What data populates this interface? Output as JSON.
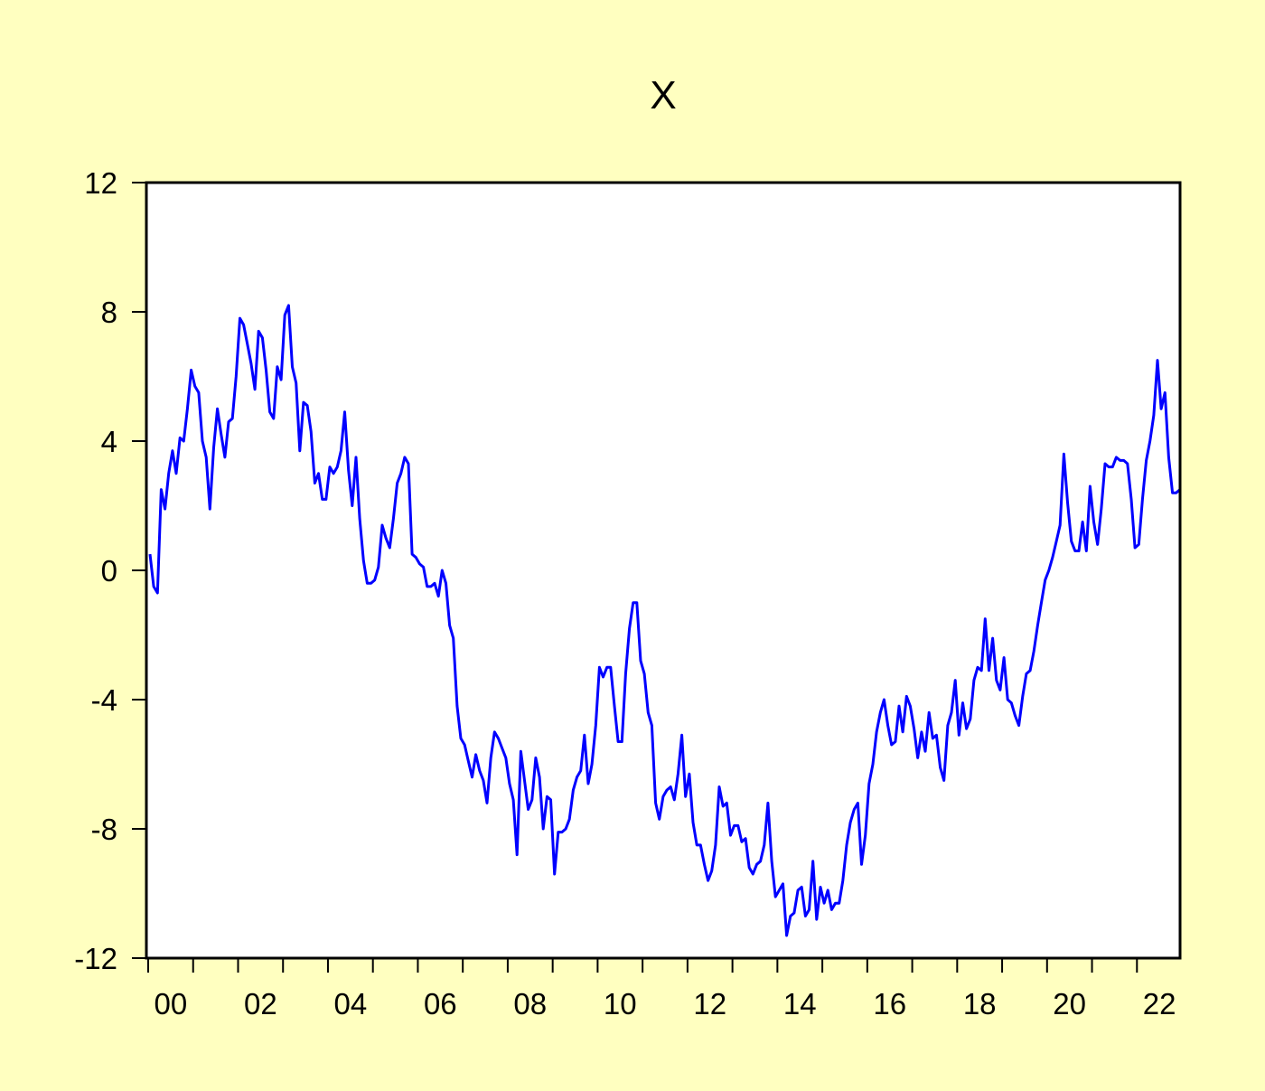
{
  "chart_data": {
    "type": "line",
    "title": "X",
    "xlabel": "",
    "ylabel": "",
    "x_range": [
      "2000-01",
      "2022-12"
    ],
    "ylim": [
      -12,
      12
    ],
    "y_ticks": [
      12,
      8,
      4,
      0,
      -4,
      -8,
      -12
    ],
    "x_tick_labels": [
      "00",
      "02",
      "04",
      "06",
      "08",
      "10",
      "12",
      "14",
      "16",
      "18",
      "20",
      "22"
    ],
    "legend": "none",
    "grid": false,
    "background_color": "#FFFFC0",
    "plot_background_color": "#FFFFFF",
    "series": [
      {
        "color": "#0000FF",
        "points": [
          [
            "2000-01",
            0.5
          ],
          [
            "2000-02",
            -0.5
          ],
          [
            "2000-03",
            -0.7
          ],
          [
            "2000-04",
            2.5
          ],
          [
            "2000-05",
            1.9
          ],
          [
            "2000-06",
            3.0
          ],
          [
            "2000-07",
            3.7
          ],
          [
            "2000-08",
            3.0
          ],
          [
            "2000-09",
            4.1
          ],
          [
            "2000-10",
            4.0
          ],
          [
            "2000-11",
            5.0
          ],
          [
            "2000-12",
            6.2
          ],
          [
            "2001-01",
            5.7
          ],
          [
            "2001-02",
            5.5
          ],
          [
            "2001-03",
            4.0
          ],
          [
            "2001-04",
            3.5
          ],
          [
            "2001-05",
            1.9
          ],
          [
            "2001-06",
            3.8
          ],
          [
            "2001-07",
            5.0
          ],
          [
            "2001-08",
            4.2
          ],
          [
            "2001-09",
            3.5
          ],
          [
            "2001-10",
            4.6
          ],
          [
            "2001-11",
            4.7
          ],
          [
            "2001-12",
            6.0
          ],
          [
            "2002-01",
            7.8
          ],
          [
            "2002-02",
            7.6
          ],
          [
            "2002-03",
            7.0
          ],
          [
            "2002-04",
            6.4
          ],
          [
            "2002-05",
            5.6
          ],
          [
            "2002-06",
            7.4
          ],
          [
            "2002-07",
            7.2
          ],
          [
            "2002-08",
            6.2
          ],
          [
            "2002-09",
            4.9
          ],
          [
            "2002-10",
            4.7
          ],
          [
            "2002-11",
            6.3
          ],
          [
            "2002-12",
            5.9
          ],
          [
            "2003-01",
            7.9
          ],
          [
            "2003-02",
            8.2
          ],
          [
            "2003-03",
            6.3
          ],
          [
            "2003-04",
            5.8
          ],
          [
            "2003-05",
            3.7
          ],
          [
            "2003-06",
            5.2
          ],
          [
            "2003-07",
            5.1
          ],
          [
            "2003-08",
            4.3
          ],
          [
            "2003-09",
            2.7
          ],
          [
            "2003-10",
            3.0
          ],
          [
            "2003-11",
            2.2
          ],
          [
            "2003-12",
            2.2
          ],
          [
            "2004-01",
            3.2
          ],
          [
            "2004-02",
            3.0
          ],
          [
            "2004-03",
            3.2
          ],
          [
            "2004-04",
            3.7
          ],
          [
            "2004-05",
            4.9
          ],
          [
            "2004-06",
            3.1
          ],
          [
            "2004-07",
            2.0
          ],
          [
            "2004-08",
            3.5
          ],
          [
            "2004-09",
            1.6
          ],
          [
            "2004-10",
            0.3
          ],
          [
            "2004-11",
            -0.4
          ],
          [
            "2004-12",
            -0.4
          ],
          [
            "2005-01",
            -0.3
          ],
          [
            "2005-02",
            0.1
          ],
          [
            "2005-03",
            1.4
          ],
          [
            "2005-04",
            1.0
          ],
          [
            "2005-05",
            0.7
          ],
          [
            "2005-06",
            1.6
          ],
          [
            "2005-07",
            2.7
          ],
          [
            "2005-08",
            3.0
          ],
          [
            "2005-09",
            3.5
          ],
          [
            "2005-10",
            3.3
          ],
          [
            "2005-11",
            0.5
          ],
          [
            "2005-12",
            0.4
          ],
          [
            "2006-01",
            0.2
          ],
          [
            "2006-02",
            0.1
          ],
          [
            "2006-03",
            -0.5
          ],
          [
            "2006-04",
            -0.5
          ],
          [
            "2006-05",
            -0.4
          ],
          [
            "2006-06",
            -0.8
          ],
          [
            "2006-07",
            0.0
          ],
          [
            "2006-08",
            -0.4
          ],
          [
            "2006-09",
            -1.7
          ],
          [
            "2006-10",
            -2.1
          ],
          [
            "2006-11",
            -4.2
          ],
          [
            "2006-12",
            -5.2
          ],
          [
            "2007-01",
            -5.4
          ],
          [
            "2007-02",
            -5.9
          ],
          [
            "2007-03",
            -6.4
          ],
          [
            "2007-04",
            -5.7
          ],
          [
            "2007-05",
            -6.2
          ],
          [
            "2007-06",
            -6.5
          ],
          [
            "2007-07",
            -7.2
          ],
          [
            "2007-08",
            -5.8
          ],
          [
            "2007-09",
            -5.0
          ],
          [
            "2007-10",
            -5.2
          ],
          [
            "2007-11",
            -5.5
          ],
          [
            "2007-12",
            -5.8
          ],
          [
            "2008-01",
            -6.6
          ],
          [
            "2008-02",
            -7.1
          ],
          [
            "2008-03",
            -8.8
          ],
          [
            "2008-04",
            -5.6
          ],
          [
            "2008-05",
            -6.5
          ],
          [
            "2008-06",
            -7.4
          ],
          [
            "2008-07",
            -7.1
          ],
          [
            "2008-08",
            -5.8
          ],
          [
            "2008-09",
            -6.4
          ],
          [
            "2008-10",
            -8.0
          ],
          [
            "2008-11",
            -7.0
          ],
          [
            "2008-12",
            -7.1
          ],
          [
            "2009-01",
            -9.4
          ],
          [
            "2009-02",
            -8.1
          ],
          [
            "2009-03",
            -8.1
          ],
          [
            "2009-04",
            -8.0
          ],
          [
            "2009-05",
            -7.7
          ],
          [
            "2009-06",
            -6.8
          ],
          [
            "2009-07",
            -6.4
          ],
          [
            "2009-08",
            -6.2
          ],
          [
            "2009-09",
            -5.1
          ],
          [
            "2009-10",
            -6.6
          ],
          [
            "2009-11",
            -6.0
          ],
          [
            "2009-12",
            -4.8
          ],
          [
            "2010-01",
            -3.0
          ],
          [
            "2010-02",
            -3.3
          ],
          [
            "2010-03",
            -3.0
          ],
          [
            "2010-04",
            -3.0
          ],
          [
            "2010-05",
            -4.2
          ],
          [
            "2010-06",
            -5.3
          ],
          [
            "2010-07",
            -5.3
          ],
          [
            "2010-08",
            -3.2
          ],
          [
            "2010-09",
            -1.8
          ],
          [
            "2010-10",
            -1.0
          ],
          [
            "2010-11",
            -1.0
          ],
          [
            "2010-12",
            -2.8
          ],
          [
            "2011-01",
            -3.2
          ],
          [
            "2011-02",
            -4.4
          ],
          [
            "2011-03",
            -4.8
          ],
          [
            "2011-04",
            -7.2
          ],
          [
            "2011-05",
            -7.7
          ],
          [
            "2011-06",
            -7.0
          ],
          [
            "2011-07",
            -6.8
          ],
          [
            "2011-08",
            -6.7
          ],
          [
            "2011-09",
            -7.1
          ],
          [
            "2011-10",
            -6.3
          ],
          [
            "2011-11",
            -5.1
          ],
          [
            "2011-12",
            -7.0
          ],
          [
            "2012-01",
            -6.3
          ],
          [
            "2012-02",
            -7.8
          ],
          [
            "2012-03",
            -8.5
          ],
          [
            "2012-04",
            -8.5
          ],
          [
            "2012-05",
            -9.1
          ],
          [
            "2012-06",
            -9.6
          ],
          [
            "2012-07",
            -9.3
          ],
          [
            "2012-08",
            -8.5
          ],
          [
            "2012-09",
            -6.7
          ],
          [
            "2012-10",
            -7.3
          ],
          [
            "2012-11",
            -7.2
          ],
          [
            "2012-12",
            -8.2
          ],
          [
            "2013-01",
            -7.9
          ],
          [
            "2013-02",
            -7.9
          ],
          [
            "2013-03",
            -8.4
          ],
          [
            "2013-04",
            -8.3
          ],
          [
            "2013-05",
            -9.2
          ],
          [
            "2013-06",
            -9.4
          ],
          [
            "2013-07",
            -9.1
          ],
          [
            "2013-08",
            -9.0
          ],
          [
            "2013-09",
            -8.5
          ],
          [
            "2013-10",
            -7.2
          ],
          [
            "2013-11",
            -9.0
          ],
          [
            "2013-12",
            -10.1
          ],
          [
            "2014-01",
            -9.9
          ],
          [
            "2014-02",
            -9.7
          ],
          [
            "2014-03",
            -11.3
          ],
          [
            "2014-04",
            -10.7
          ],
          [
            "2014-05",
            -10.6
          ],
          [
            "2014-06",
            -9.9
          ],
          [
            "2014-07",
            -9.8
          ],
          [
            "2014-08",
            -10.7
          ],
          [
            "2014-09",
            -10.5
          ],
          [
            "2014-10",
            -9.0
          ],
          [
            "2014-11",
            -10.8
          ],
          [
            "2014-12",
            -9.8
          ],
          [
            "2015-01",
            -10.3
          ],
          [
            "2015-02",
            -9.9
          ],
          [
            "2015-03",
            -10.5
          ],
          [
            "2015-04",
            -10.3
          ],
          [
            "2015-05",
            -10.3
          ],
          [
            "2015-06",
            -9.6
          ],
          [
            "2015-07",
            -8.5
          ],
          [
            "2015-08",
            -7.8
          ],
          [
            "2015-09",
            -7.4
          ],
          [
            "2015-10",
            -7.2
          ],
          [
            "2015-11",
            -9.1
          ],
          [
            "2015-12",
            -8.2
          ],
          [
            "2016-01",
            -6.6
          ],
          [
            "2016-02",
            -6.0
          ],
          [
            "2016-03",
            -5.0
          ],
          [
            "2016-04",
            -4.4
          ],
          [
            "2016-05",
            -4.0
          ],
          [
            "2016-06",
            -4.8
          ],
          [
            "2016-07",
            -5.4
          ],
          [
            "2016-08",
            -5.3
          ],
          [
            "2016-09",
            -4.2
          ],
          [
            "2016-10",
            -5.0
          ],
          [
            "2016-11",
            -3.9
          ],
          [
            "2016-12",
            -4.2
          ],
          [
            "2017-01",
            -4.9
          ],
          [
            "2017-02",
            -5.8
          ],
          [
            "2017-03",
            -5.0
          ],
          [
            "2017-04",
            -5.6
          ],
          [
            "2017-05",
            -4.4
          ],
          [
            "2017-06",
            -5.2
          ],
          [
            "2017-07",
            -5.1
          ],
          [
            "2017-08",
            -6.1
          ],
          [
            "2017-09",
            -6.5
          ],
          [
            "2017-10",
            -4.8
          ],
          [
            "2017-11",
            -4.4
          ],
          [
            "2017-12",
            -3.4
          ],
          [
            "2018-01",
            -5.1
          ],
          [
            "2018-02",
            -4.1
          ],
          [
            "2018-03",
            -4.9
          ],
          [
            "2018-04",
            -4.6
          ],
          [
            "2018-05",
            -3.4
          ],
          [
            "2018-06",
            -3.0
          ],
          [
            "2018-07",
            -3.1
          ],
          [
            "2018-08",
            -1.5
          ],
          [
            "2018-09",
            -3.1
          ],
          [
            "2018-10",
            -2.1
          ],
          [
            "2018-11",
            -3.4
          ],
          [
            "2018-12",
            -3.7
          ],
          [
            "2019-01",
            -2.7
          ],
          [
            "2019-02",
            -4.0
          ],
          [
            "2019-03",
            -4.1
          ],
          [
            "2019-04",
            -4.5
          ],
          [
            "2019-05",
            -4.8
          ],
          [
            "2019-06",
            -3.9
          ],
          [
            "2019-07",
            -3.2
          ],
          [
            "2019-08",
            -3.1
          ],
          [
            "2019-09",
            -2.5
          ],
          [
            "2019-10",
            -1.7
          ],
          [
            "2019-11",
            -1.0
          ],
          [
            "2019-12",
            -0.3
          ],
          [
            "2020-01",
            0.0
          ],
          [
            "2020-02",
            0.4
          ],
          [
            "2020-03",
            0.9
          ],
          [
            "2020-04",
            1.4
          ],
          [
            "2020-05",
            3.6
          ],
          [
            "2020-06",
            2.1
          ],
          [
            "2020-07",
            0.9
          ],
          [
            "2020-08",
            0.6
          ],
          [
            "2020-09",
            0.6
          ],
          [
            "2020-10",
            1.5
          ],
          [
            "2020-11",
            0.6
          ],
          [
            "2020-12",
            2.6
          ],
          [
            "2021-01",
            1.5
          ],
          [
            "2021-02",
            0.8
          ],
          [
            "2021-03",
            1.9
          ],
          [
            "2021-04",
            3.3
          ],
          [
            "2021-05",
            3.2
          ],
          [
            "2021-06",
            3.2
          ],
          [
            "2021-07",
            3.5
          ],
          [
            "2021-08",
            3.4
          ],
          [
            "2021-09",
            3.4
          ],
          [
            "2021-10",
            3.3
          ],
          [
            "2021-11",
            2.2
          ],
          [
            "2021-12",
            0.7
          ],
          [
            "2022-01",
            0.8
          ],
          [
            "2022-02",
            2.2
          ],
          [
            "2022-03",
            3.4
          ],
          [
            "2022-04",
            4.0
          ],
          [
            "2022-05",
            4.8
          ],
          [
            "2022-06",
            6.5
          ],
          [
            "2022-07",
            5.0
          ],
          [
            "2022-08",
            5.5
          ],
          [
            "2022-09",
            3.5
          ],
          [
            "2022-10",
            2.4
          ],
          [
            "2022-11",
            2.4
          ],
          [
            "2022-12",
            2.5
          ]
        ]
      }
    ]
  }
}
